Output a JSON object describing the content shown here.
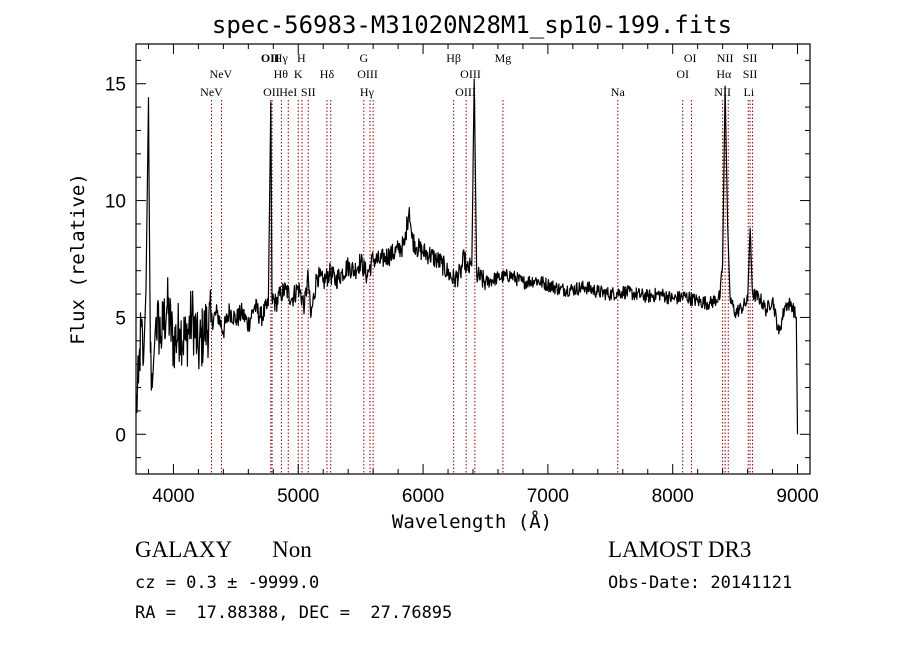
{
  "chart_data": {
    "type": "line",
    "title": "spec-56983-M31020N28M1_sp10-199.fits",
    "xlabel": "Wavelength (Å)",
    "ylabel": "Flux (relative)",
    "xlim": [
      3700,
      9100
    ],
    "ylim": [
      -1.7,
      16.7
    ],
    "x_ticks": [
      4000,
      5000,
      6000,
      7000,
      8000,
      9000
    ],
    "y_ticks": [
      0,
      5,
      10,
      15
    ],
    "spectrum_anchor_points": [
      [
        3700,
        1.0
      ],
      [
        3720,
        2.2
      ],
      [
        3740,
        4.6
      ],
      [
        3760,
        3.1
      ],
      [
        3780,
        6.2
      ],
      [
        3800,
        14.4
      ],
      [
        3815,
        3.5
      ],
      [
        3830,
        2.0
      ],
      [
        3860,
        5.0
      ],
      [
        3900,
        4.2
      ],
      [
        3950,
        5.5
      ],
      [
        4000,
        3.9
      ],
      [
        4050,
        4.5
      ],
      [
        4100,
        4.0
      ],
      [
        4150,
        5.1
      ],
      [
        4200,
        3.6
      ],
      [
        4250,
        4.5
      ],
      [
        4300,
        4.8
      ],
      [
        4350,
        5.2
      ],
      [
        4400,
        4.4
      ],
      [
        4450,
        5.3
      ],
      [
        4500,
        4.9
      ],
      [
        4550,
        5.2
      ],
      [
        4600,
        4.7
      ],
      [
        4650,
        5.5
      ],
      [
        4700,
        5.0
      ],
      [
        4760,
        5.5
      ],
      [
        4780,
        14.2
      ],
      [
        4790,
        5.8
      ],
      [
        4820,
        5.6
      ],
      [
        4860,
        6.0
      ],
      [
        4900,
        6.2
      ],
      [
        4950,
        5.8
      ],
      [
        5000,
        6.3
      ],
      [
        5050,
        5.5
      ],
      [
        5080,
        6.8
      ],
      [
        5100,
        5.0
      ],
      [
        5150,
        6.8
      ],
      [
        5200,
        6.5
      ],
      [
        5250,
        6.9
      ],
      [
        5300,
        6.6
      ],
      [
        5350,
        6.9
      ],
      [
        5400,
        7.2
      ],
      [
        5450,
        7.0
      ],
      [
        5500,
        7.4
      ],
      [
        5550,
        6.8
      ],
      [
        5600,
        7.5
      ],
      [
        5650,
        7.4
      ],
      [
        5700,
        7.6
      ],
      [
        5750,
        7.7
      ],
      [
        5800,
        7.9
      ],
      [
        5850,
        8.1
      ],
      [
        5890,
        9.7
      ],
      [
        5910,
        8.4
      ],
      [
        5950,
        8.0
      ],
      [
        6000,
        7.8
      ],
      [
        6050,
        7.7
      ],
      [
        6100,
        7.5
      ],
      [
        6150,
        7.3
      ],
      [
        6200,
        6.9
      ],
      [
        6250,
        6.6
      ],
      [
        6300,
        6.9
      ],
      [
        6330,
        7.6
      ],
      [
        6350,
        7.0
      ],
      [
        6390,
        7.2
      ],
      [
        6410,
        15.2
      ],
      [
        6430,
        6.8
      ],
      [
        6500,
        6.5
      ],
      [
        6600,
        6.7
      ],
      [
        6700,
        6.8
      ],
      [
        6800,
        6.5
      ],
      [
        6900,
        6.6
      ],
      [
        7000,
        6.4
      ],
      [
        7100,
        6.2
      ],
      [
        7200,
        6.2
      ],
      [
        7300,
        6.3
      ],
      [
        7400,
        6.1
      ],
      [
        7500,
        6.0
      ],
      [
        7600,
        6.1
      ],
      [
        7700,
        6.0
      ],
      [
        7800,
        5.9
      ],
      [
        7900,
        6.0
      ],
      [
        8000,
        5.8
      ],
      [
        8100,
        5.9
      ],
      [
        8200,
        5.7
      ],
      [
        8300,
        5.6
      ],
      [
        8380,
        5.9
      ],
      [
        8400,
        7.3
      ],
      [
        8420,
        14.9
      ],
      [
        8440,
        9.0
      ],
      [
        8460,
        5.8
      ],
      [
        8500,
        5.2
      ],
      [
        8550,
        5.4
      ],
      [
        8600,
        5.7
      ],
      [
        8620,
        8.8
      ],
      [
        8640,
        6.0
      ],
      [
        8700,
        5.8
      ],
      [
        8750,
        5.3
      ],
      [
        8800,
        5.8
      ],
      [
        8850,
        4.3
      ],
      [
        8900,
        5.5
      ],
      [
        8950,
        5.6
      ],
      [
        8990,
        5.0
      ],
      [
        9000,
        0.0
      ]
    ],
    "line_markers": [
      {
        "label": "NeV",
        "x": 4305,
        "row": 2,
        "bold": false
      },
      {
        "label": "NeV",
        "x": 4380,
        "row": 1,
        "bold": false
      },
      {
        "label": "OII",
        "x": 4775,
        "row": 0,
        "bold": true
      },
      {
        "label": "OII",
        "x": 4785,
        "row": 2,
        "bold": false
      },
      {
        "label": "Hγ",
        "x": 4860,
        "row": 0,
        "bold": false
      },
      {
        "label": "Hθ",
        "x": 4860,
        "row": 1,
        "bold": false
      },
      {
        "label": "HeI",
        "x": 4920,
        "row": 2,
        "bold": false
      },
      {
        "label": "H",
        "x": 5025,
        "row": 0,
        "bold": false
      },
      {
        "label": "K",
        "x": 5000,
        "row": 1,
        "bold": false
      },
      {
        "label": "SII",
        "x": 5080,
        "row": 2,
        "bold": false
      },
      {
        "label": "Hδ",
        "x": 5230,
        "row": 1,
        "bold": false
      },
      {
        "label": "G",
        "x": 5525,
        "row": 0,
        "bold": false
      },
      {
        "label": "OIII",
        "x": 5555,
        "row": 1,
        "bold": false
      },
      {
        "label": "Hγ",
        "x": 5550,
        "row": 2,
        "bold": false
      },
      {
        "label": "Hβ",
        "x": 6245,
        "row": 0,
        "bold": false
      },
      {
        "label": "OIII",
        "x": 6380,
        "row": 1,
        "bold": false
      },
      {
        "label": "OIII",
        "x": 6340,
        "row": 2,
        "bold": false
      },
      {
        "label": "Mg",
        "x": 6640,
        "row": 0,
        "bold": false
      },
      {
        "label": "Na",
        "x": 7560,
        "row": 2,
        "bold": false
      },
      {
        "label": "OI",
        "x": 8140,
        "row": 0,
        "bold": false
      },
      {
        "label": "OI",
        "x": 8080,
        "row": 1,
        "bold": false
      },
      {
        "label": "NII",
        "x": 8420,
        "row": 0,
        "bold": false
      },
      {
        "label": "Hα",
        "x": 8410,
        "row": 1,
        "bold": false
      },
      {
        "label": "NII",
        "x": 8400,
        "row": 2,
        "bold": false
      },
      {
        "label": "SII",
        "x": 8620,
        "row": 0,
        "bold": false
      },
      {
        "label": "SII",
        "x": 8620,
        "row": 1,
        "bold": false
      },
      {
        "label": "Li",
        "x": 8610,
        "row": 2,
        "bold": false
      }
    ],
    "marker_lines_x": [
      4305,
      4385,
      4780,
      4790,
      4865,
      4920,
      5000,
      5030,
      5080,
      5230,
      5260,
      5525,
      5575,
      5600,
      6245,
      6345,
      6415,
      6640,
      7560,
      8080,
      8150,
      8400,
      8420,
      8445,
      8605,
      8620,
      8640
    ]
  },
  "info": {
    "class": "GALAXY",
    "subclass": "Non",
    "survey": "LAMOST DR3",
    "redshift_line": "cz = 0.3 ± -9999.0",
    "obs_date": "Obs-Date: 20141121",
    "coords": "RA =  17.88388, DEC =  27.76895"
  },
  "colors": {
    "spectrum": "#000000",
    "marker_line": "#8b0000",
    "axis": "#000000"
  }
}
